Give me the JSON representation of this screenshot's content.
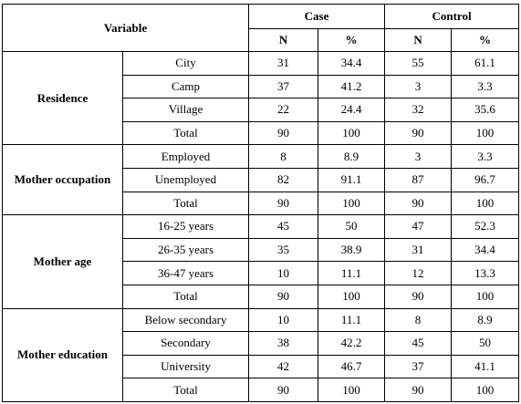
{
  "header": {
    "variable": "Variable",
    "case": "Case",
    "control": "Control",
    "n": "N",
    "pct": "%"
  },
  "groups": [
    {
      "label": "Residence",
      "rows": [
        {
          "category": "City",
          "case_n": "31",
          "case_pct": "34.4",
          "control_n": "55",
          "control_pct": "61.1"
        },
        {
          "category": "Camp",
          "case_n": "37",
          "case_pct": "41.2",
          "control_n": "3",
          "control_pct": "3.3"
        },
        {
          "category": "Village",
          "case_n": "22",
          "case_pct": "24.4",
          "control_n": "32",
          "control_pct": "35.6"
        },
        {
          "category": "Total",
          "case_n": "90",
          "case_pct": "100",
          "control_n": "90",
          "control_pct": "100"
        }
      ]
    },
    {
      "label": "Mother occupation",
      "rows": [
        {
          "category": "Employed",
          "case_n": "8",
          "case_pct": "8.9",
          "control_n": "3",
          "control_pct": "3.3"
        },
        {
          "category": "Unemployed",
          "case_n": "82",
          "case_pct": "91.1",
          "control_n": "87",
          "control_pct": "96.7"
        },
        {
          "category": "Total",
          "case_n": "90",
          "case_pct": "100",
          "control_n": "90",
          "control_pct": "100"
        }
      ]
    },
    {
      "label": "Mother age",
      "rows": [
        {
          "category": "16-25 years",
          "case_n": "45",
          "case_pct": "50",
          "control_n": "47",
          "control_pct": "52.3"
        },
        {
          "category": "26-35 years",
          "case_n": "35",
          "case_pct": "38.9",
          "control_n": "31",
          "control_pct": "34.4"
        },
        {
          "category": "36-47 years",
          "case_n": "10",
          "case_pct": "11.1",
          "control_n": "12",
          "control_pct": "13.3"
        },
        {
          "category": "Total",
          "case_n": "90",
          "case_pct": "100",
          "control_n": "90",
          "control_pct": "100"
        }
      ]
    },
    {
      "label": "Mother education",
      "rows": [
        {
          "category": "Below secondary",
          "case_n": "10",
          "case_pct": "11.1",
          "control_n": "8",
          "control_pct": "8.9"
        },
        {
          "category": "Secondary",
          "case_n": "38",
          "case_pct": "42.2",
          "control_n": "45",
          "control_pct": "50"
        },
        {
          "category": "University",
          "case_n": "42",
          "case_pct": "46.7",
          "control_n": "37",
          "control_pct": "41.1"
        },
        {
          "category": "Total",
          "case_n": "90",
          "case_pct": "100",
          "control_n": "90",
          "control_pct": "100"
        }
      ]
    }
  ]
}
